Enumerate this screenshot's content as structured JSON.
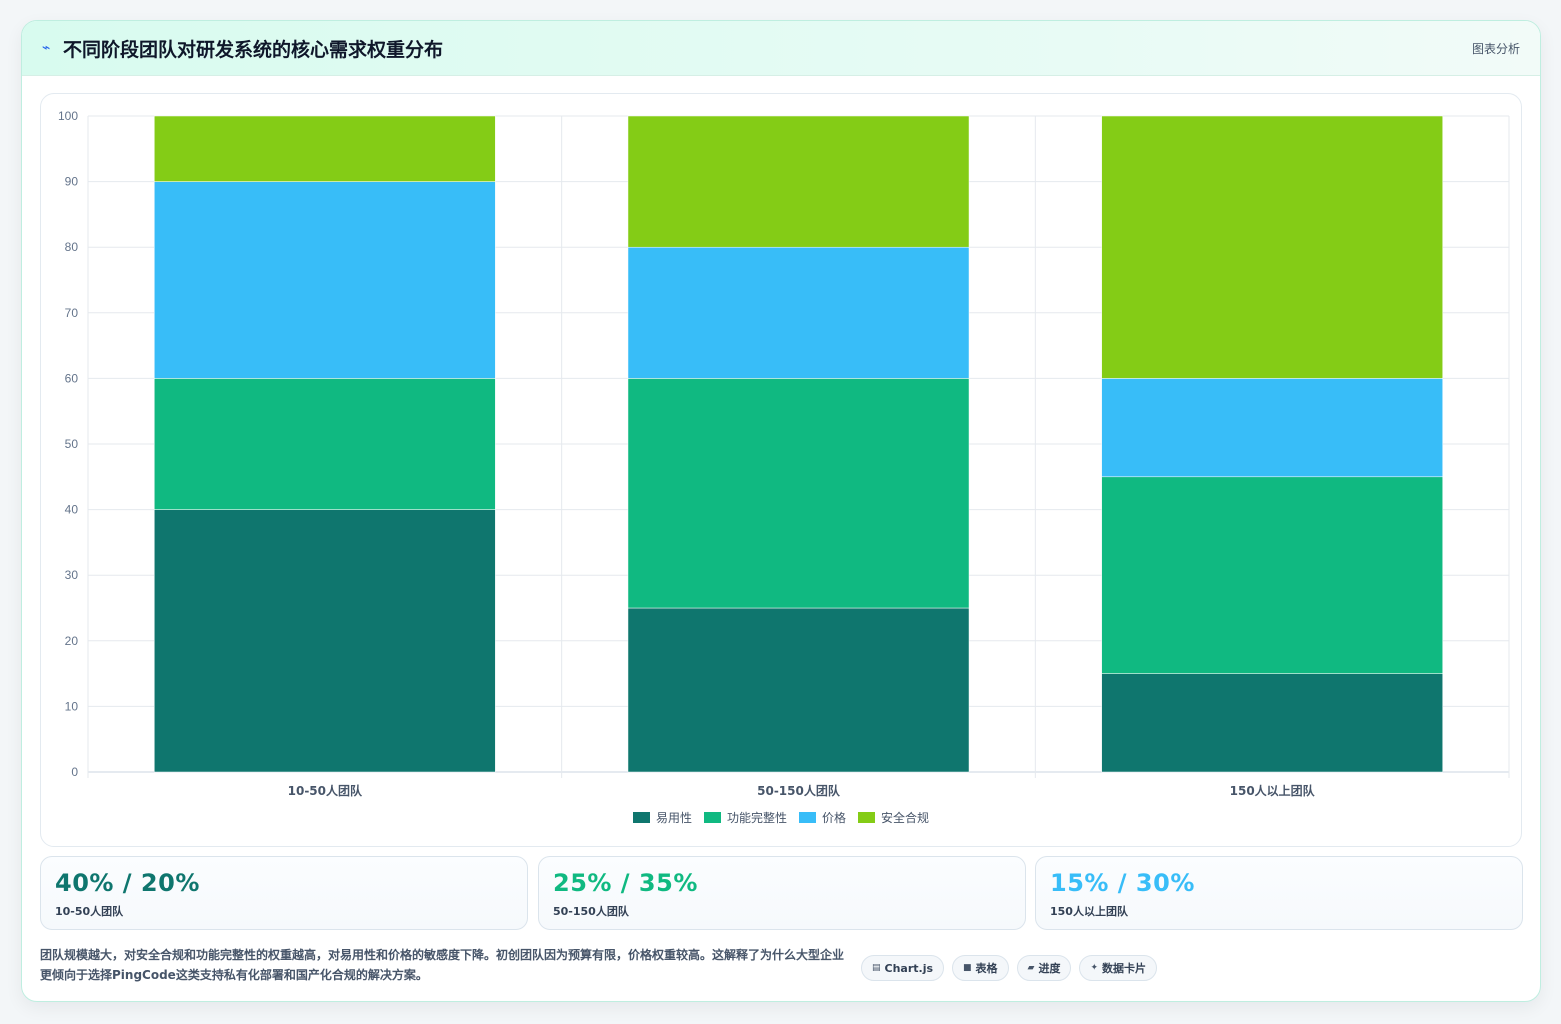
{
  "header": {
    "title": "不同阶段团队对研发系统的核心需求权重分布",
    "icon": "lightning-icon",
    "tag": "图表分析"
  },
  "chart_data": {
    "type": "bar",
    "stacked": true,
    "categories": [
      "10-50人团队",
      "50-150人团队",
      "150人以上团队"
    ],
    "series": [
      {
        "name": "易用性",
        "color": "#0f766e",
        "values": [
          40,
          25,
          15
        ]
      },
      {
        "name": "功能完整性",
        "color": "#10b981",
        "values": [
          20,
          35,
          30
        ]
      },
      {
        "name": "价格",
        "color": "#38bdf8",
        "values": [
          30,
          20,
          15
        ]
      },
      {
        "name": "安全合规",
        "color": "#84cc16",
        "values": [
          10,
          20,
          40
        ]
      }
    ],
    "ylim": [
      0,
      100
    ],
    "yticks": [
      0,
      10,
      20,
      30,
      40,
      50,
      60,
      70,
      80,
      90,
      100
    ],
    "grid": true,
    "legend_position": "bottom"
  },
  "kpis": [
    {
      "value": "40% / 20%",
      "label": "10-50人团队",
      "color": "#0f766e"
    },
    {
      "value": "25% / 35%",
      "label": "50-150人团队",
      "color": "#10b981"
    },
    {
      "value": "15% / 30%",
      "label": "150人以上团队",
      "color": "#38bdf8"
    }
  ],
  "footer": {
    "text": "团队规模越大，对安全合规和功能完整性的权重越高，对易用性和价格的敏感度下降。初创团队因为预算有限，价格权重较高。这解释了为什么大型企业更倾向于选择PingCode这类支持私有化部署和国产化合规的解决方案。"
  },
  "pills": [
    {
      "icon": "chart-icon",
      "glyph": "▤",
      "label": "Chart.js"
    },
    {
      "icon": "table-icon",
      "glyph": "■",
      "label": "表格"
    },
    {
      "icon": "progress-icon",
      "glyph": "▰",
      "label": "进度"
    },
    {
      "icon": "sparkle-icon",
      "glyph": "✦",
      "label": "数据卡片"
    }
  ]
}
